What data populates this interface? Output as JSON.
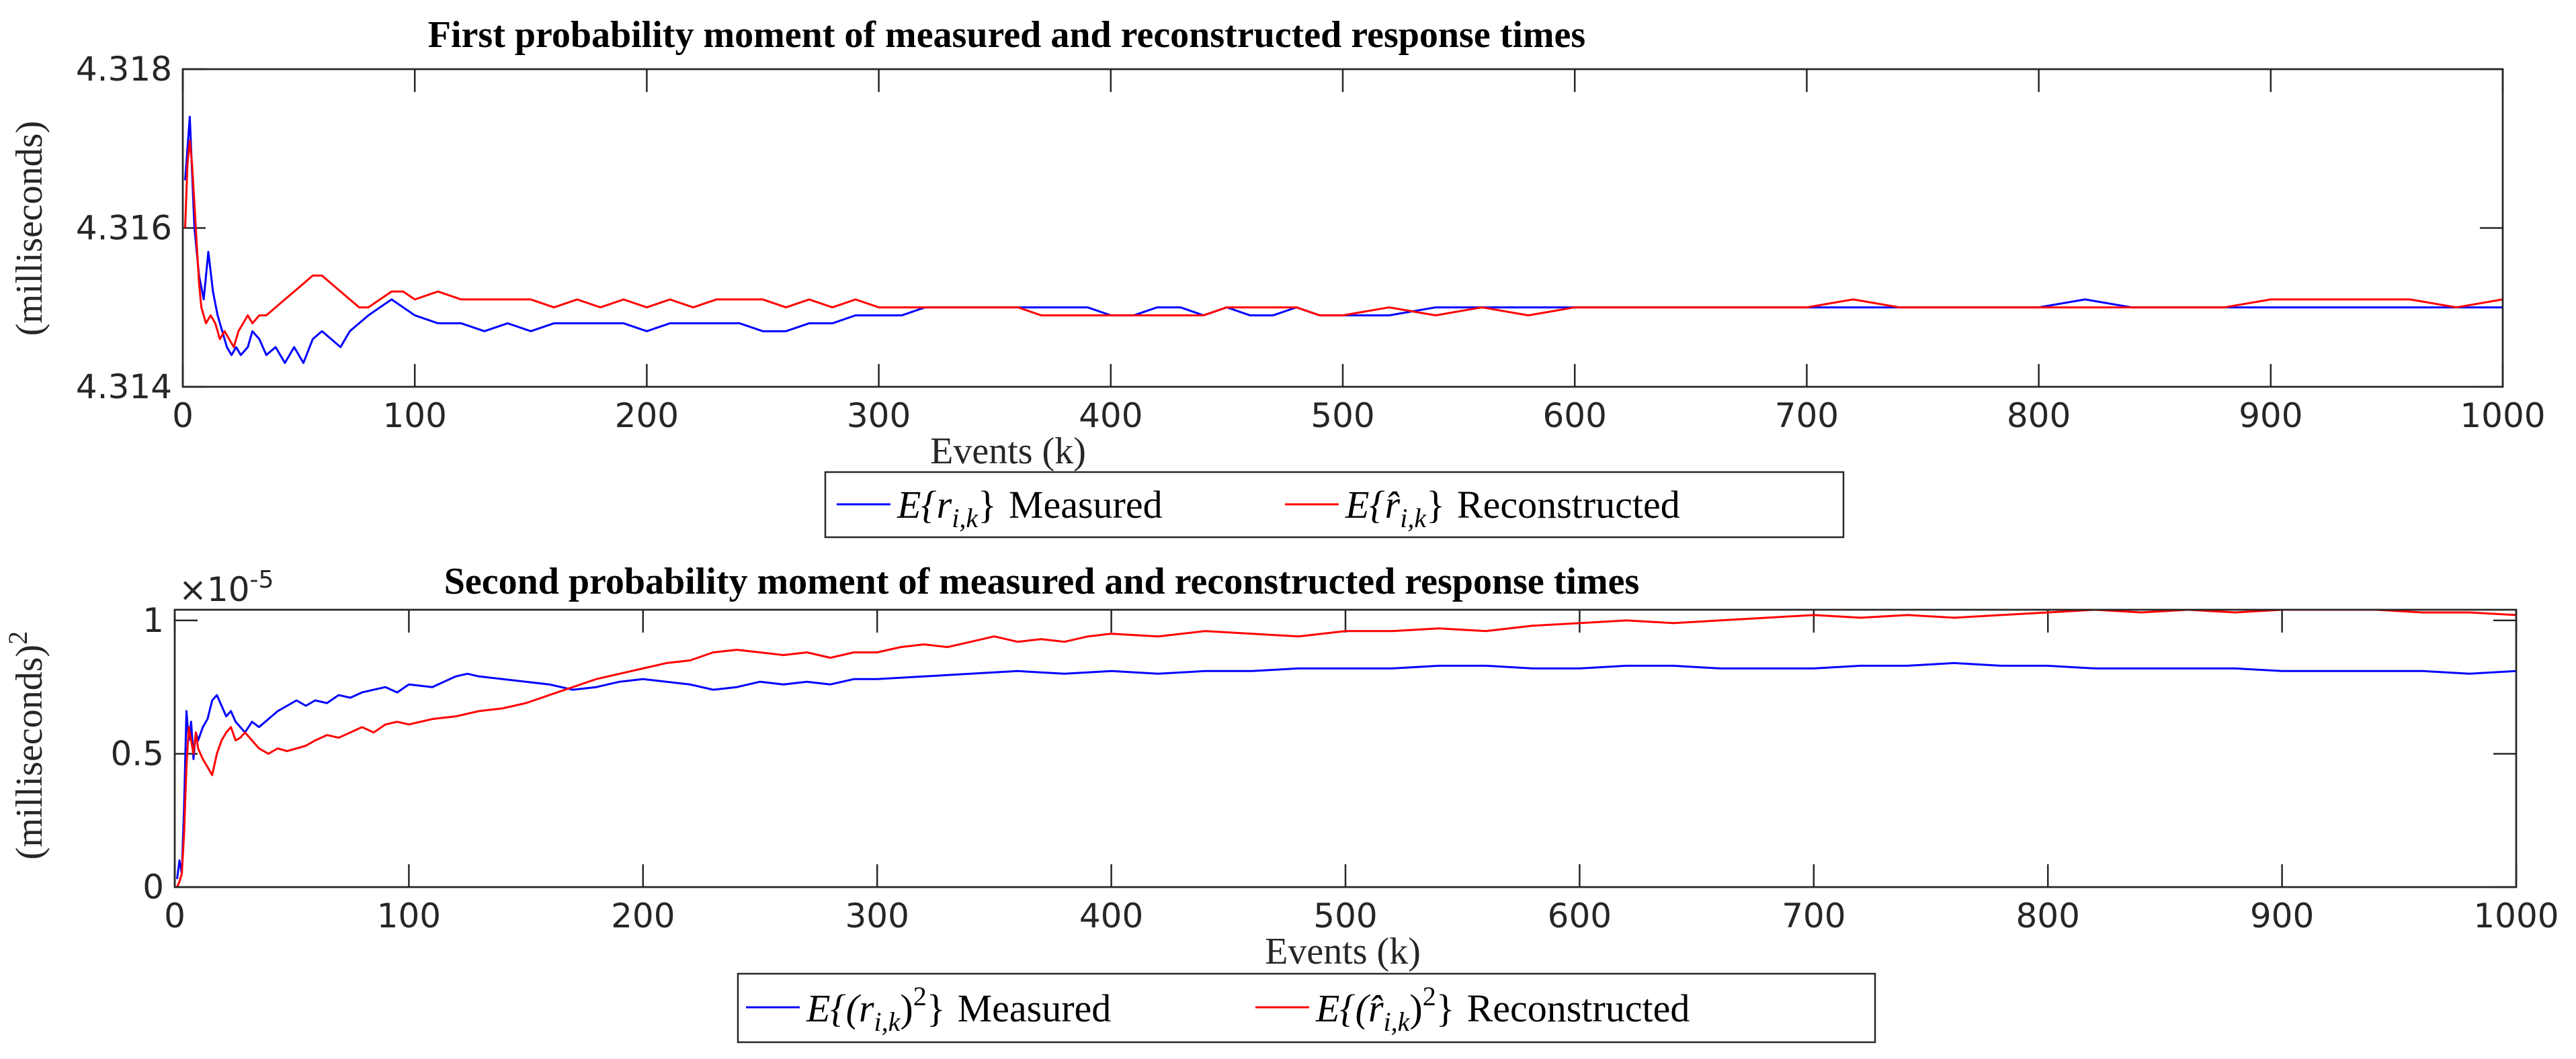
{
  "colors": {
    "measured": "#0000ff",
    "reconstructed": "#ff0000",
    "axis": "#262626"
  },
  "chart_data": [
    {
      "type": "line",
      "title": "First probability moment of measured and reconstructed response times",
      "xlabel": "Events (k)",
      "ylabel": "(milliseconds)",
      "xlim": [
        0,
        1000
      ],
      "ylim": [
        4.314,
        4.318
      ],
      "xticks": [
        0,
        100,
        200,
        300,
        400,
        500,
        600,
        700,
        800,
        900,
        1000
      ],
      "xtick_labels": [
        "0",
        "100",
        "200",
        "300",
        "400",
        "500",
        "600",
        "700",
        "800",
        "900",
        "1000"
      ],
      "yticks": [
        4.314,
        4.316,
        4.318
      ],
      "ytick_labels": [
        "4.314",
        "4.316",
        "4.318"
      ],
      "legend": {
        "placement": "below",
        "entries": [
          {
            "math": "E{r",
            "sub": "i,k",
            "close": "}",
            "label": "Measured"
          },
          {
            "math": "E{r̂",
            "sub": "i,k",
            "close": "}",
            "label": "Reconstructed"
          }
        ]
      },
      "series": [
        {
          "name": "E{r_i,k} Measured",
          "color": "#0000ff",
          "x": [
            1,
            3,
            4,
            5,
            7,
            9,
            11,
            13,
            15,
            17,
            19,
            21,
            23,
            25,
            28,
            30,
            33,
            36,
            40,
            44,
            48,
            52,
            56,
            60,
            64,
            68,
            72,
            76,
            80,
            85,
            90,
            95,
            100,
            110,
            120,
            130,
            140,
            150,
            160,
            170,
            180,
            190,
            200,
            210,
            220,
            230,
            240,
            250,
            260,
            270,
            280,
            290,
            300,
            310,
            320,
            330,
            340,
            350,
            360,
            370,
            380,
            390,
            400,
            410,
            420,
            430,
            440,
            450,
            460,
            470,
            480,
            490,
            500,
            520,
            540,
            560,
            580,
            600,
            620,
            640,
            660,
            680,
            700,
            720,
            740,
            760,
            780,
            800,
            820,
            840,
            860,
            880,
            900,
            920,
            940,
            960,
            980,
            1000
          ],
          "y": [
            4.3166,
            4.3174,
            4.3167,
            4.316,
            4.3154,
            4.3151,
            4.3157,
            4.3152,
            4.3149,
            4.3147,
            4.3145,
            4.3144,
            4.3145,
            4.3144,
            4.3145,
            4.3147,
            4.3146,
            4.3144,
            4.3145,
            4.3143,
            4.3145,
            4.3143,
            4.3146,
            4.3147,
            4.3146,
            4.3145,
            4.3147,
            4.3148,
            4.3149,
            4.315,
            4.3151,
            4.315,
            4.3149,
            4.3148,
            4.3148,
            4.3147,
            4.3148,
            4.3147,
            4.3148,
            4.3148,
            4.3148,
            4.3148,
            4.3147,
            4.3148,
            4.3148,
            4.3148,
            4.3148,
            4.3147,
            4.3147,
            4.3148,
            4.3148,
            4.3149,
            4.3149,
            4.3149,
            4.315,
            4.315,
            4.315,
            4.315,
            4.315,
            4.315,
            4.315,
            4.315,
            4.3149,
            4.3149,
            4.315,
            4.315,
            4.3149,
            4.315,
            4.3149,
            4.3149,
            4.315,
            4.3149,
            4.3149,
            4.3149,
            4.315,
            4.315,
            4.315,
            4.315,
            4.315,
            4.315,
            4.315,
            4.315,
            4.315,
            4.315,
            4.315,
            4.315,
            4.315,
            4.315,
            4.3151,
            4.315,
            4.315,
            4.315,
            4.315,
            4.315,
            4.315,
            4.315,
            4.315,
            4.315
          ]
        },
        {
          "name": "E{r̂_i,k} Reconstructed",
          "color": "#ff0000",
          "x": [
            1,
            2,
            3,
            4,
            5,
            6,
            7,
            8,
            10,
            12,
            14,
            16,
            18,
            20,
            22,
            24,
            26,
            28,
            30,
            33,
            36,
            40,
            44,
            48,
            52,
            56,
            60,
            64,
            68,
            72,
            76,
            80,
            85,
            90,
            95,
            100,
            110,
            120,
            130,
            140,
            150,
            160,
            170,
            180,
            190,
            200,
            210,
            220,
            230,
            240,
            250,
            260,
            270,
            280,
            290,
            300,
            310,
            320,
            330,
            340,
            350,
            360,
            370,
            380,
            390,
            400,
            410,
            420,
            430,
            440,
            450,
            460,
            470,
            480,
            490,
            500,
            520,
            540,
            560,
            580,
            600,
            620,
            640,
            660,
            680,
            700,
            720,
            740,
            760,
            780,
            800,
            820,
            840,
            860,
            880,
            900,
            920,
            940,
            960,
            980,
            1000
          ],
          "y": [
            4.316,
            4.3168,
            4.3171,
            4.3168,
            4.3163,
            4.3158,
            4.3153,
            4.315,
            4.3148,
            4.3149,
            4.3148,
            4.3146,
            4.3147,
            4.3146,
            4.3145,
            4.3147,
            4.3148,
            4.3149,
            4.3148,
            4.3149,
            4.3149,
            4.315,
            4.3151,
            4.3152,
            4.3153,
            4.3154,
            4.3154,
            4.3153,
            4.3152,
            4.3151,
            4.315,
            4.315,
            4.3151,
            4.3152,
            4.3152,
            4.3151,
            4.3152,
            4.3151,
            4.3151,
            4.3151,
            4.3151,
            4.315,
            4.3151,
            4.315,
            4.3151,
            4.315,
            4.3151,
            4.315,
            4.3151,
            4.3151,
            4.3151,
            4.315,
            4.3151,
            4.315,
            4.3151,
            4.315,
            4.315,
            4.315,
            4.315,
            4.315,
            4.315,
            4.315,
            4.3149,
            4.3149,
            4.3149,
            4.3149,
            4.3149,
            4.3149,
            4.3149,
            4.3149,
            4.315,
            4.315,
            4.315,
            4.315,
            4.3149,
            4.3149,
            4.315,
            4.3149,
            4.315,
            4.3149,
            4.315,
            4.315,
            4.315,
            4.315,
            4.315,
            4.315,
            4.3151,
            4.315,
            4.315,
            4.315,
            4.315,
            4.315,
            4.315,
            4.315,
            4.315,
            4.3151,
            4.3151,
            4.3151,
            4.3151,
            4.315,
            4.3151
          ]
        }
      ]
    },
    {
      "type": "line",
      "title": "Second probability moment of measured and reconstructed response times",
      "xlabel": "Events (k)",
      "ylabel": "(milliseconds)",
      "ylabel_superscript": "2",
      "exponent_label": "×10",
      "exponent_power": "-5",
      "xlim": [
        0,
        1000
      ],
      "ylim": [
        0,
        1.04
      ],
      "xticks": [
        0,
        100,
        200,
        300,
        400,
        500,
        600,
        700,
        800,
        900,
        1000
      ],
      "xtick_labels": [
        "0",
        "100",
        "200",
        "300",
        "400",
        "500",
        "600",
        "700",
        "800",
        "900",
        "1000"
      ],
      "yticks": [
        0,
        0.5,
        1
      ],
      "ytick_labels": [
        "0",
        "0.5",
        "1"
      ],
      "legend": {
        "placement": "below",
        "entries": [
          {
            "math": "E{(r",
            "sub": "i,k",
            "close": ")",
            "sup": "2",
            "close2": "}",
            "label": "Measured"
          },
          {
            "math": "E{(r̂",
            "sub": "i,k",
            "close": ")",
            "sup": "2",
            "close2": "}",
            "label": "Reconstructed"
          }
        ]
      },
      "series": [
        {
          "name": "E{(r_i,k)^2} Measured",
          "color": "#0000ff",
          "x": [
            1,
            2,
            3,
            4,
            5,
            6,
            7,
            8,
            9,
            10,
            12,
            14,
            16,
            18,
            20,
            22,
            24,
            26,
            28,
            30,
            33,
            36,
            40,
            44,
            48,
            52,
            56,
            60,
            65,
            70,
            75,
            80,
            85,
            90,
            95,
            100,
            110,
            120,
            125,
            130,
            140,
            150,
            160,
            170,
            180,
            190,
            200,
            210,
            220,
            230,
            240,
            250,
            260,
            270,
            280,
            290,
            300,
            320,
            340,
            360,
            380,
            400,
            420,
            440,
            460,
            480,
            500,
            520,
            540,
            560,
            580,
            600,
            620,
            640,
            660,
            680,
            700,
            720,
            740,
            760,
            780,
            800,
            820,
            840,
            860,
            880,
            900,
            920,
            940,
            960,
            980,
            1000
          ],
          "y": [
            0.03,
            0.1,
            0.05,
            0.3,
            0.66,
            0.55,
            0.62,
            0.48,
            0.58,
            0.55,
            0.6,
            0.63,
            0.7,
            0.72,
            0.68,
            0.64,
            0.66,
            0.62,
            0.6,
            0.58,
            0.62,
            0.6,
            0.63,
            0.66,
            0.68,
            0.7,
            0.68,
            0.7,
            0.69,
            0.72,
            0.71,
            0.73,
            0.74,
            0.75,
            0.73,
            0.76,
            0.75,
            0.79,
            0.8,
            0.79,
            0.78,
            0.77,
            0.76,
            0.74,
            0.75,
            0.77,
            0.78,
            0.77,
            0.76,
            0.74,
            0.75,
            0.77,
            0.76,
            0.77,
            0.76,
            0.78,
            0.78,
            0.79,
            0.8,
            0.81,
            0.8,
            0.81,
            0.8,
            0.81,
            0.81,
            0.82,
            0.82,
            0.82,
            0.83,
            0.83,
            0.82,
            0.82,
            0.83,
            0.83,
            0.82,
            0.82,
            0.82,
            0.83,
            0.83,
            0.84,
            0.83,
            0.83,
            0.82,
            0.82,
            0.82,
            0.82,
            0.81,
            0.81,
            0.81,
            0.81,
            0.8,
            0.81
          ]
        },
        {
          "name": "E{(r̂_i,k)^2} Reconstructed",
          "color": "#ff0000",
          "x": [
            1,
            2,
            3,
            4,
            5,
            6,
            7,
            8,
            9,
            10,
            12,
            14,
            16,
            18,
            20,
            22,
            24,
            26,
            28,
            30,
            33,
            36,
            40,
            44,
            48,
            52,
            56,
            60,
            65,
            70,
            75,
            80,
            85,
            90,
            95,
            100,
            110,
            120,
            130,
            140,
            150,
            160,
            170,
            180,
            190,
            200,
            210,
            220,
            230,
            240,
            250,
            260,
            270,
            280,
            290,
            300,
            310,
            320,
            330,
            340,
            350,
            360,
            370,
            380,
            390,
            400,
            420,
            440,
            460,
            480,
            500,
            520,
            540,
            560,
            580,
            600,
            620,
            640,
            660,
            680,
            700,
            720,
            740,
            760,
            780,
            800,
            820,
            840,
            860,
            880,
            900,
            920,
            940,
            960,
            980,
            1000
          ],
          "y": [
            0.0,
            0.02,
            0.05,
            0.2,
            0.45,
            0.6,
            0.55,
            0.5,
            0.58,
            0.52,
            0.48,
            0.45,
            0.42,
            0.5,
            0.55,
            0.58,
            0.6,
            0.55,
            0.56,
            0.58,
            0.55,
            0.52,
            0.5,
            0.52,
            0.51,
            0.52,
            0.53,
            0.55,
            0.57,
            0.56,
            0.58,
            0.6,
            0.58,
            0.61,
            0.62,
            0.61,
            0.63,
            0.64,
            0.66,
            0.67,
            0.69,
            0.72,
            0.75,
            0.78,
            0.8,
            0.82,
            0.84,
            0.85,
            0.88,
            0.89,
            0.88,
            0.87,
            0.88,
            0.86,
            0.88,
            0.88,
            0.9,
            0.91,
            0.9,
            0.92,
            0.94,
            0.92,
            0.93,
            0.92,
            0.94,
            0.95,
            0.94,
            0.96,
            0.95,
            0.94,
            0.96,
            0.96,
            0.97,
            0.96,
            0.98,
            0.99,
            1.0,
            0.99,
            1.0,
            1.01,
            1.02,
            1.01,
            1.02,
            1.01,
            1.02,
            1.03,
            1.04,
            1.03,
            1.04,
            1.03,
            1.04,
            1.04,
            1.04,
            1.03,
            1.03,
            1.02
          ]
        }
      ]
    }
  ]
}
